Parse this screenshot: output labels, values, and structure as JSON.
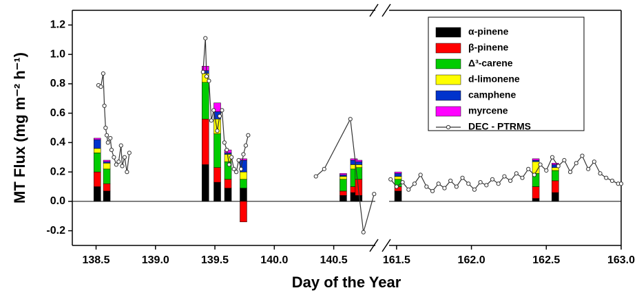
{
  "chart_data": {
    "type": "bar",
    "stacked": true,
    "ylabel": "MT Flux (mg m⁻² h⁻¹)",
    "xlabel": "Day of the Year",
    "ylim": [
      -0.3,
      1.3
    ],
    "yticks": [
      -0.2,
      {
        "value": 0,
        "label": "0.0"
      },
      0.2,
      0.4,
      0.6,
      0.8,
      {
        "value": 1,
        "label": "1.0"
      },
      1.2
    ],
    "x_segments": [
      {
        "xlim": [
          138.3,
          140.85
        ],
        "xticks": [
          138.5,
          {
            "value": 139,
            "label": "139.0"
          },
          139.5,
          {
            "value": 140,
            "label": "140.0"
          },
          140.5
        ]
      },
      {
        "xlim": [
          161.45,
          163.0
        ],
        "xticks": [
          161.5,
          {
            "value": 162,
            "label": "162.0"
          },
          162.5,
          {
            "value": 163,
            "label": "163.0"
          }
        ]
      }
    ],
    "x": [
      138.51,
      138.59,
      139.42,
      139.52,
      139.61,
      139.74,
      140.58,
      140.67,
      140.71,
      161.51,
      162.43,
      162.56
    ],
    "series": [
      {
        "name": "α-pinene",
        "color": "#000000",
        "values": [
          0.1,
          0.07,
          0.25,
          0.13,
          0.09,
          0.09,
          0.04,
          0.06,
          0.04,
          0.07,
          0.02,
          0.06
        ]
      },
      {
        "name": "β-pinene",
        "color": "#ff0000",
        "values": [
          0.1,
          0.05,
          0.31,
          0.1,
          0.06,
          -0.14,
          0.03,
          0.04,
          0.11,
          0.03,
          0.08,
          0.08
        ]
      },
      {
        "name": "Δ³-carene",
        "color": "#00cc00",
        "values": [
          0.13,
          0.1,
          0.25,
          0.23,
          0.12,
          0.06,
          0.08,
          0.12,
          0.08,
          0.05,
          0.09,
          0.07
        ]
      },
      {
        "name": "d-limonene",
        "color": "#ffff00",
        "values": [
          0.03,
          0.04,
          0.06,
          0.1,
          0.05,
          0.05,
          0.02,
          0.03,
          0.02,
          0.02,
          0.08,
          0.02
        ]
      },
      {
        "name": "camphene",
        "color": "#0033cc",
        "values": [
          0.06,
          0.01,
          0.02,
          0.05,
          0.01,
          0.08,
          0.01,
          0.03,
          0.02,
          0.02,
          0.01,
          0.02
        ]
      },
      {
        "name": "myrcene",
        "color": "#ff00ff",
        "values": [
          0.01,
          0.01,
          0.03,
          0.06,
          0.02,
          0.01,
          0.01,
          0.01,
          0.01,
          0.01,
          0.01,
          0.01
        ]
      }
    ],
    "line": {
      "name": "DEC - PTRMS",
      "color": "#333333",
      "x": [
        138.52,
        138.54,
        138.56,
        138.57,
        138.58,
        138.59,
        138.6,
        138.62,
        138.63,
        138.65,
        138.67,
        138.69,
        138.71,
        138.72,
        138.74,
        138.76,
        138.78,
        null,
        139.4,
        139.42,
        139.43,
        139.45,
        139.47,
        139.49,
        139.52,
        139.54,
        139.56,
        139.58,
        139.6,
        139.62,
        139.64,
        139.66,
        139.68,
        139.7,
        139.72,
        139.74,
        139.76,
        139.78,
        null,
        140.35,
        140.42,
        140.64,
        140.75,
        140.84,
        null,
        161.46,
        161.5,
        161.54,
        161.58,
        161.62,
        161.66,
        161.7,
        161.74,
        161.78,
        161.82,
        161.86,
        161.9,
        161.94,
        161.98,
        162.02,
        162.06,
        162.1,
        162.14,
        162.18,
        162.22,
        162.26,
        162.3,
        162.34,
        162.38,
        162.42,
        162.46,
        162.5,
        162.54,
        162.58,
        162.62,
        162.66,
        162.7,
        162.74,
        162.78,
        162.82,
        162.86,
        162.9,
        162.94,
        162.98,
        163.0
      ],
      "values": [
        0.79,
        0.78,
        0.87,
        0.65,
        0.5,
        0.45,
        0.4,
        0.43,
        0.35,
        0.3,
        0.25,
        0.27,
        0.38,
        0.24,
        0.3,
        0.2,
        0.33,
        null,
        0.88,
        1.11,
        0.85,
        0.82,
        0.55,
        0.62,
        0.48,
        0.58,
        0.62,
        0.4,
        0.35,
        0.25,
        0.3,
        0.22,
        0.2,
        0.28,
        0.22,
        0.32,
        0.38,
        0.45,
        null,
        0.17,
        0.22,
        0.56,
        -0.21,
        0.05,
        null,
        0.15,
        0.1,
        0.13,
        0.08,
        0.12,
        0.18,
        0.1,
        0.07,
        0.12,
        0.09,
        0.14,
        0.1,
        0.16,
        0.12,
        0.08,
        0.13,
        0.11,
        0.15,
        0.12,
        0.17,
        0.14,
        0.19,
        0.16,
        0.22,
        0.18,
        0.25,
        0.21,
        0.3,
        0.24,
        0.28,
        0.2,
        0.26,
        0.31,
        0.22,
        0.27,
        0.19,
        0.16,
        0.14,
        0.12,
        0.12
      ]
    }
  }
}
